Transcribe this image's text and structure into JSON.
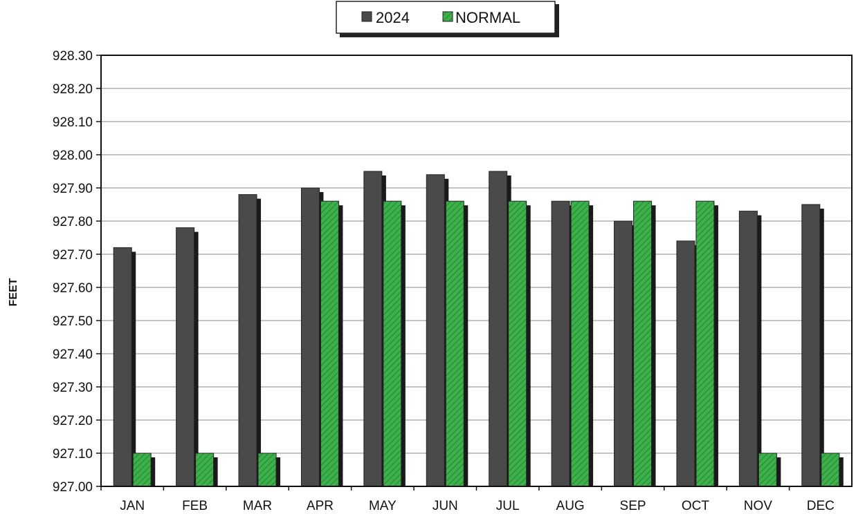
{
  "chart_data": {
    "type": "bar",
    "categories": [
      "JAN",
      "FEB",
      "MAR",
      "APR",
      "MAY",
      "JUN",
      "JUL",
      "AUG",
      "SEP",
      "OCT",
      "NOV",
      "DEC"
    ],
    "series": [
      {
        "name": "2024",
        "values": [
          927.72,
          927.78,
          927.88,
          927.9,
          927.95,
          927.94,
          927.95,
          927.86,
          927.8,
          927.74,
          927.83,
          927.85
        ],
        "color": "#4a4a4a"
      },
      {
        "name": "NORMAL",
        "values": [
          927.1,
          927.1,
          927.1,
          927.86,
          927.86,
          927.86,
          927.86,
          927.86,
          927.86,
          927.86,
          927.1,
          927.1
        ],
        "color": "#3cb04a",
        "pattern": "diagonal-hatch"
      }
    ],
    "ylabel": "FEET",
    "xlabel": "",
    "title": "",
    "ylim": [
      927.0,
      928.3
    ],
    "yticks": [
      "927.00",
      "927.10",
      "927.20",
      "927.30",
      "927.40",
      "927.50",
      "927.60",
      "927.70",
      "927.80",
      "927.90",
      "928.00",
      "928.10",
      "928.20",
      "928.30"
    ],
    "grid": true,
    "legend_position": "top-center"
  }
}
